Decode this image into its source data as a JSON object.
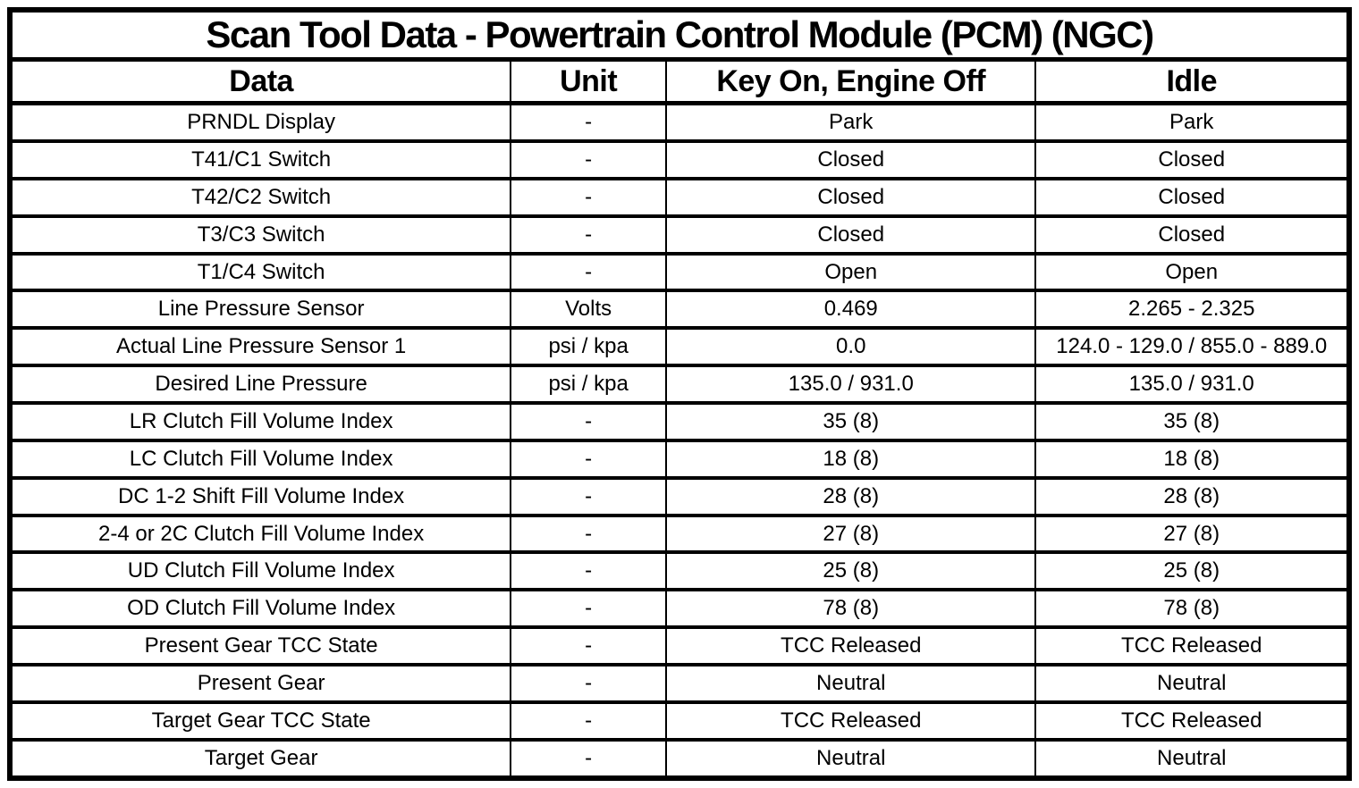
{
  "page": {
    "title": "Scan Tool Data - Powertrain Control Module (PCM) (NGC)"
  },
  "table": {
    "columns": [
      "Data",
      "Unit",
      "Key On, Engine Off",
      "Idle"
    ],
    "rows": [
      [
        "PRNDL Display",
        "-",
        "Park",
        "Park"
      ],
      [
        "T41/C1 Switch",
        "-",
        "Closed",
        "Closed"
      ],
      [
        "T42/C2 Switch",
        "-",
        "Closed",
        "Closed"
      ],
      [
        "T3/C3 Switch",
        "-",
        "Closed",
        "Closed"
      ],
      [
        "T1/C4 Switch",
        "-",
        "Open",
        "Open"
      ],
      [
        "Line Pressure Sensor",
        "Volts",
        "0.469",
        "2.265 - 2.325"
      ],
      [
        "Actual Line Pressure Sensor 1",
        "psi / kpa",
        "0.0",
        "124.0 - 129.0 / 855.0 - 889.0"
      ],
      [
        "Desired Line Pressure",
        "psi / kpa",
        "135.0 / 931.0",
        "135.0 / 931.0"
      ],
      [
        "LR Clutch Fill Volume Index",
        "-",
        "35 (8)",
        "35 (8)"
      ],
      [
        "LC Clutch Fill Volume Index",
        "-",
        "18 (8)",
        "18 (8)"
      ],
      [
        "DC 1-2 Shift Fill Volume Index",
        "-",
        "28 (8)",
        "28 (8)"
      ],
      [
        "2-4 or 2C Clutch Fill Volume Index",
        "-",
        "27 (8)",
        "27 (8)"
      ],
      [
        "UD Clutch Fill Volume Index",
        "-",
        "25 (8)",
        "25 (8)"
      ],
      [
        "OD Clutch Fill Volume Index",
        "-",
        "78 (8)",
        "78 (8)"
      ],
      [
        "Present Gear TCC State",
        "-",
        "TCC Released",
        "TCC Released"
      ],
      [
        "Present Gear",
        "-",
        "Neutral",
        "Neutral"
      ],
      [
        "Target Gear TCC State",
        "-",
        "TCC Released",
        "TCC Released"
      ],
      [
        "Target Gear",
        "-",
        "Neutral",
        "Neutral"
      ]
    ]
  },
  "colors": {
    "border": "#000000",
    "background": "#ffffff",
    "text": "#000000"
  }
}
